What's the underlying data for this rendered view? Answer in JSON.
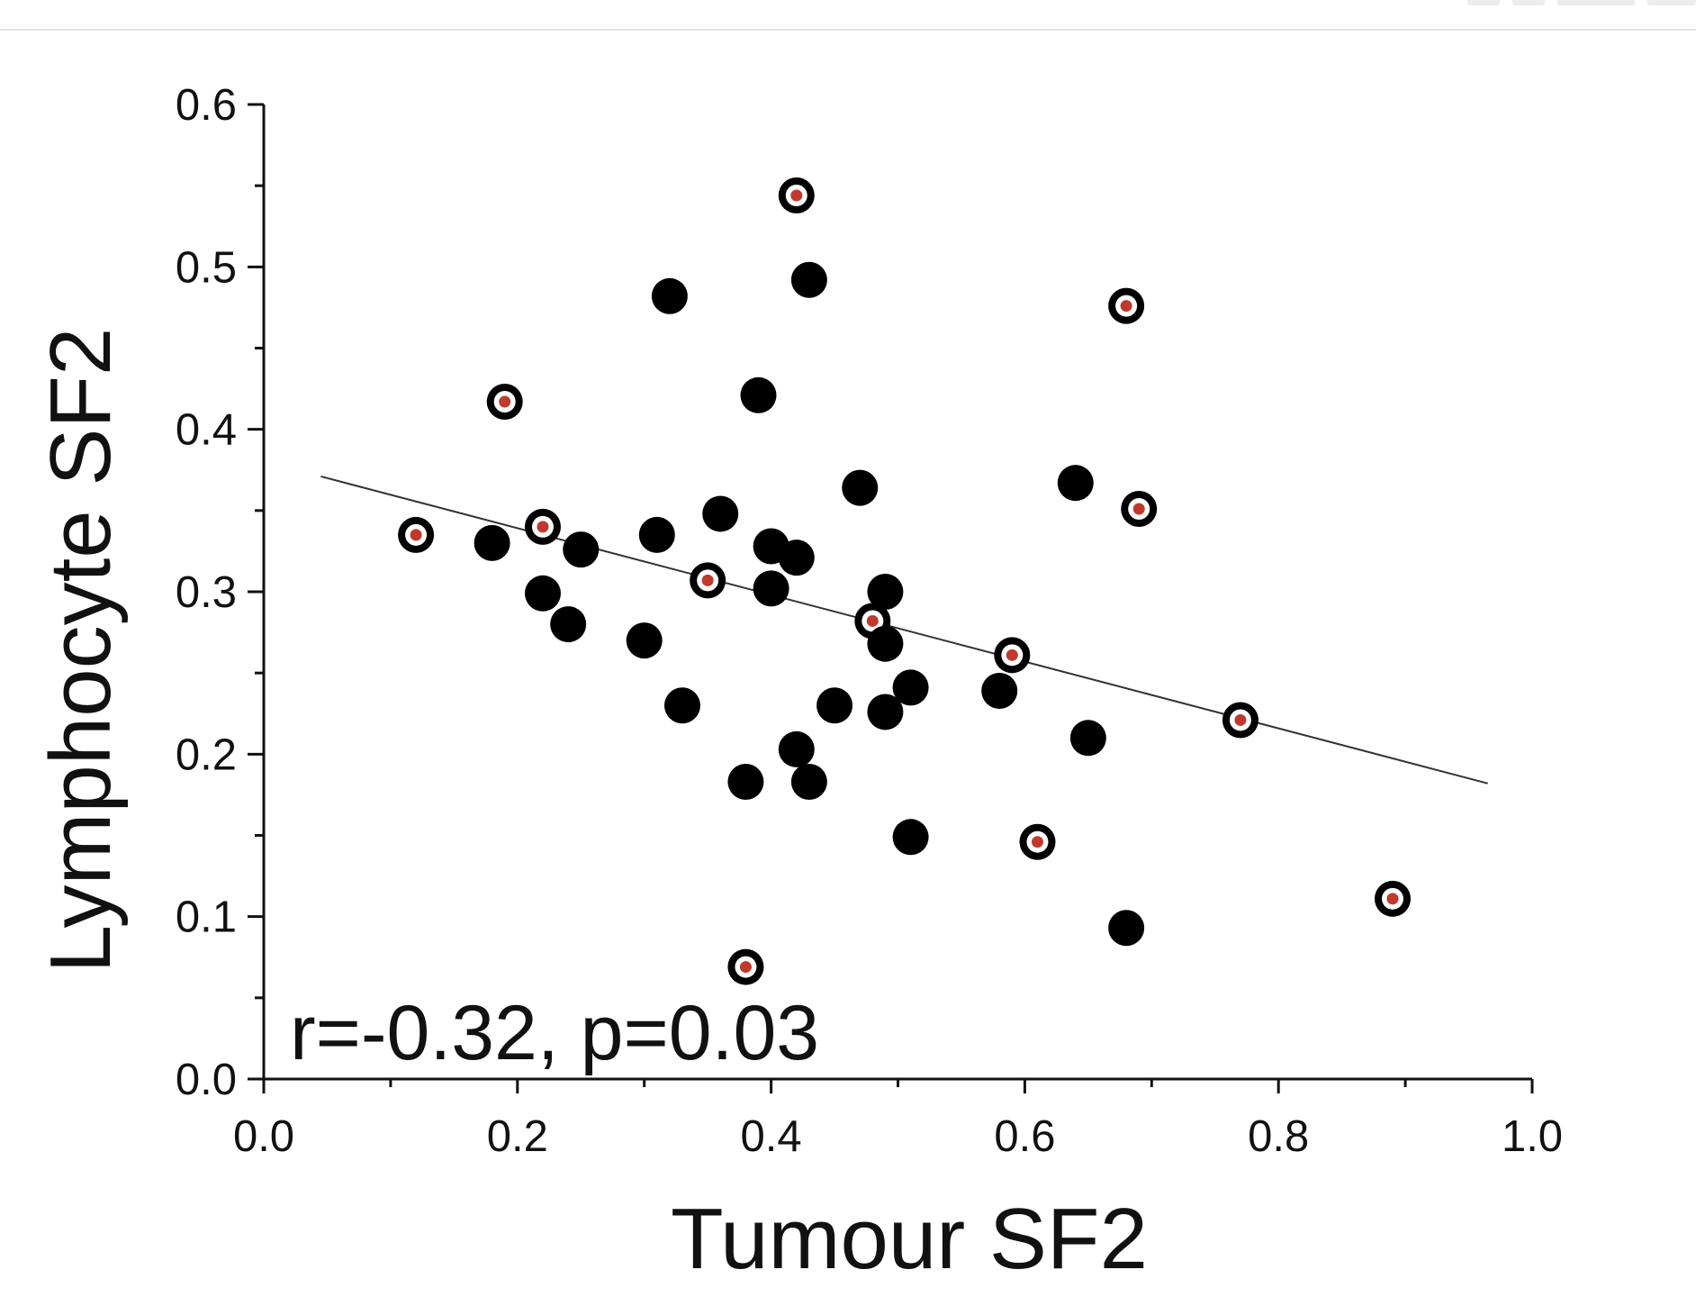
{
  "chart_data": {
    "type": "scatter",
    "xlabel": "Tumour SF2",
    "ylabel": "Lymphocyte SF2",
    "xlim": [
      0.0,
      1.0
    ],
    "ylim": [
      0.0,
      0.6
    ],
    "x_ticks": [
      "0.0",
      "0.2",
      "0.4",
      "0.6",
      "0.8",
      "1.0"
    ],
    "y_ticks": [
      "0.0",
      "0.1",
      "0.2",
      "0.3",
      "0.4",
      "0.5",
      "0.6"
    ],
    "annotation": "r=-0.32, p=0.03",
    "grid": false,
    "colors": {
      "point": "#000000",
      "center": "#c0392b",
      "line": "#333333"
    },
    "regression_line": {
      "x": [
        0.045,
        0.965
      ],
      "y": [
        0.371,
        0.182
      ]
    },
    "points": [
      {
        "x": 0.12,
        "y": 0.335,
        "marked": true
      },
      {
        "x": 0.18,
        "y": 0.33,
        "marked": false
      },
      {
        "x": 0.19,
        "y": 0.417,
        "marked": true
      },
      {
        "x": 0.22,
        "y": 0.34,
        "marked": true
      },
      {
        "x": 0.22,
        "y": 0.299,
        "marked": false
      },
      {
        "x": 0.24,
        "y": 0.28,
        "marked": false
      },
      {
        "x": 0.25,
        "y": 0.326,
        "marked": false
      },
      {
        "x": 0.3,
        "y": 0.27,
        "marked": false
      },
      {
        "x": 0.31,
        "y": 0.335,
        "marked": false
      },
      {
        "x": 0.32,
        "y": 0.482,
        "marked": false
      },
      {
        "x": 0.33,
        "y": 0.23,
        "marked": false
      },
      {
        "x": 0.35,
        "y": 0.307,
        "marked": true
      },
      {
        "x": 0.36,
        "y": 0.348,
        "marked": false
      },
      {
        "x": 0.38,
        "y": 0.183,
        "marked": false
      },
      {
        "x": 0.38,
        "y": 0.069,
        "marked": true
      },
      {
        "x": 0.39,
        "y": 0.421,
        "marked": false
      },
      {
        "x": 0.4,
        "y": 0.328,
        "marked": false
      },
      {
        "x": 0.4,
        "y": 0.302,
        "marked": false
      },
      {
        "x": 0.42,
        "y": 0.544,
        "marked": true
      },
      {
        "x": 0.42,
        "y": 0.321,
        "marked": false
      },
      {
        "x": 0.42,
        "y": 0.203,
        "marked": false
      },
      {
        "x": 0.43,
        "y": 0.492,
        "marked": false
      },
      {
        "x": 0.43,
        "y": 0.183,
        "marked": false
      },
      {
        "x": 0.45,
        "y": 0.23,
        "marked": false
      },
      {
        "x": 0.47,
        "y": 0.364,
        "marked": false
      },
      {
        "x": 0.48,
        "y": 0.282,
        "marked": true
      },
      {
        "x": 0.49,
        "y": 0.3,
        "marked": false
      },
      {
        "x": 0.49,
        "y": 0.268,
        "marked": false
      },
      {
        "x": 0.49,
        "y": 0.226,
        "marked": false
      },
      {
        "x": 0.51,
        "y": 0.241,
        "marked": false
      },
      {
        "x": 0.51,
        "y": 0.149,
        "marked": false
      },
      {
        "x": 0.58,
        "y": 0.239,
        "marked": false
      },
      {
        "x": 0.59,
        "y": 0.261,
        "marked": true
      },
      {
        "x": 0.61,
        "y": 0.146,
        "marked": true
      },
      {
        "x": 0.64,
        "y": 0.367,
        "marked": false
      },
      {
        "x": 0.65,
        "y": 0.21,
        "marked": false
      },
      {
        "x": 0.68,
        "y": 0.476,
        "marked": true
      },
      {
        "x": 0.68,
        "y": 0.093,
        "marked": false
      },
      {
        "x": 0.69,
        "y": 0.351,
        "marked": true
      },
      {
        "x": 0.77,
        "y": 0.221,
        "marked": true
      },
      {
        "x": 0.89,
        "y": 0.111,
        "marked": true
      }
    ]
  }
}
